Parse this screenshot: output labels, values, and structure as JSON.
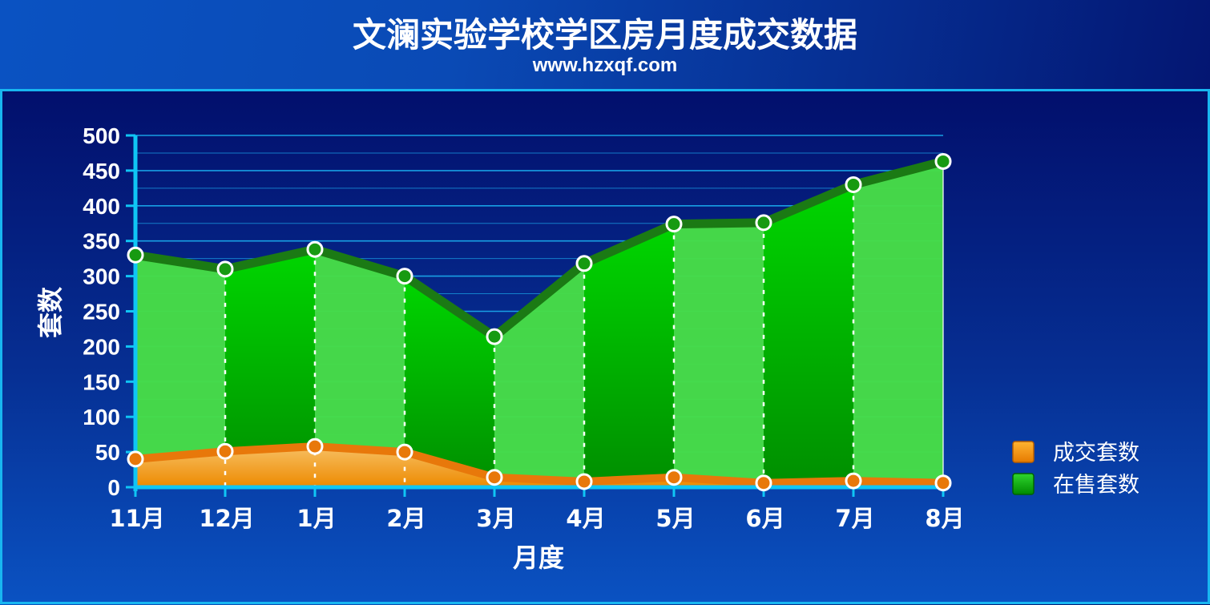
{
  "chart_data": {
    "type": "area",
    "title": "文澜实验学校学区房月度成交数据",
    "subtitle": "www.hzxqf.com",
    "xlabel": "月度",
    "ylabel": "套数",
    "categories": [
      "11月",
      "12月",
      "1月",
      "2月",
      "3月",
      "4月",
      "5月",
      "6月",
      "7月",
      "8月"
    ],
    "ylim": [
      0,
      500
    ],
    "yticks": [
      0,
      50,
      100,
      150,
      200,
      250,
      300,
      350,
      400,
      450,
      500
    ],
    "grid": true,
    "legend_position": "right",
    "series": [
      {
        "name": "成交套数",
        "color": "#f08c00",
        "values": [
          40,
          51,
          58,
          50,
          14,
          8,
          14,
          6,
          9,
          6
        ]
      },
      {
        "name": "在售套数",
        "color": "#00b400",
        "values": [
          330,
          310,
          338,
          300,
          214,
          318,
          374,
          376,
          430,
          463
        ]
      }
    ]
  }
}
